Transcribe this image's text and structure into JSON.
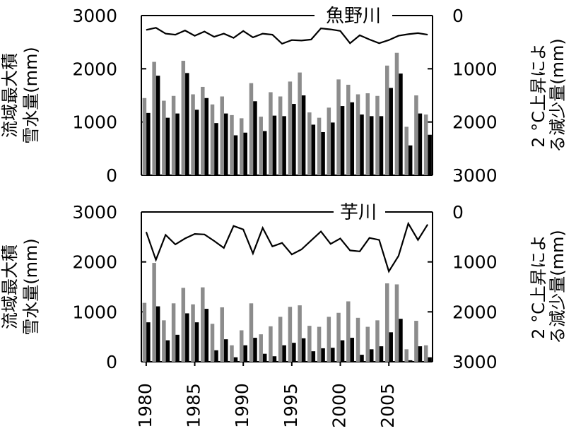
{
  "chart_data": [
    {
      "type": "bar+line",
      "title": "魚野川",
      "ylabel_left": [
        "流域最大積",
        "雪水量(mm)"
      ],
      "ylabel_right": [
        "2 °C上昇によ",
        "る減少量(mm)"
      ],
      "left_ticks": [
        "0",
        "1000",
        "2000",
        "3000"
      ],
      "right_ticks": [
        "3000",
        "2000",
        "1000",
        "0"
      ],
      "left_ylim": [
        0,
        3000
      ],
      "right_ylim_inverted": [
        0,
        3000
      ],
      "x": [
        1980,
        1981,
        1982,
        1983,
        1984,
        1985,
        1986,
        1987,
        1988,
        1989,
        1990,
        1991,
        1992,
        1993,
        1994,
        1995,
        1996,
        1997,
        1998,
        1999,
        2000,
        2001,
        2002,
        2003,
        2004,
        2005,
        2006,
        2007,
        2008,
        2009
      ],
      "series": [
        {
          "kind": "bar",
          "color": "#8c8c8c",
          "values": [
            1450,
            2130,
            1400,
            1490,
            2150,
            1520,
            1660,
            1330,
            1480,
            1130,
            1070,
            1730,
            1100,
            1560,
            1480,
            1760,
            1930,
            1180,
            1080,
            1270,
            1800,
            1700,
            1520,
            1540,
            1490,
            2060,
            2300,
            910,
            1500,
            1140
          ]
        },
        {
          "kind": "bar",
          "color": "#000000",
          "values": [
            1170,
            1870,
            1080,
            1160,
            1920,
            1230,
            1450,
            980,
            1160,
            750,
            800,
            1390,
            830,
            1120,
            1110,
            1340,
            1500,
            950,
            810,
            990,
            1300,
            1370,
            1140,
            1110,
            1110,
            1640,
            1910,
            560,
            1160,
            760
          ]
        },
        {
          "kind": "line",
          "axis": "right",
          "values": [
            270,
            230,
            340,
            360,
            280,
            380,
            300,
            400,
            340,
            420,
            290,
            410,
            340,
            360,
            530,
            460,
            470,
            450,
            240,
            260,
            290,
            520,
            370,
            450,
            520,
            460,
            380,
            350,
            330,
            360
          ]
        }
      ]
    },
    {
      "type": "bar+line",
      "title": "芋川",
      "ylabel_left": [
        "流域最大積",
        "雪水量(mm)"
      ],
      "ylabel_right": [
        "2 °C上昇によ",
        "る減少量(mm)"
      ],
      "left_ticks": [
        "0",
        "1000",
        "2000",
        "3000"
      ],
      "right_ticks": [
        "3000",
        "2000",
        "1000",
        "0"
      ],
      "left_ylim": [
        0,
        3000
      ],
      "right_ylim_inverted": [
        0,
        3000
      ],
      "x": [
        1980,
        1981,
        1982,
        1983,
        1984,
        1985,
        1986,
        1987,
        1988,
        1989,
        1990,
        1991,
        1992,
        1993,
        1994,
        1995,
        1996,
        1997,
        1998,
        1999,
        2000,
        2001,
        2002,
        2003,
        2004,
        2005,
        2006,
        2007,
        2008,
        2009
      ],
      "x_ticks": [
        "1980",
        "1985",
        "1990",
        "1995",
        "2000",
        "2005"
      ],
      "series": [
        {
          "kind": "bar",
          "color": "#8c8c8c",
          "values": [
            1180,
            1980,
            830,
            1170,
            1480,
            1150,
            1490,
            760,
            1090,
            330,
            630,
            1170,
            550,
            710,
            900,
            1100,
            1130,
            720,
            700,
            900,
            980,
            1210,
            880,
            700,
            830,
            1570,
            1550,
            250,
            820,
            330
          ]
        },
        {
          "kind": "bar",
          "color": "#000000",
          "values": [
            790,
            1110,
            430,
            540,
            970,
            790,
            1060,
            230,
            450,
            90,
            330,
            480,
            160,
            110,
            330,
            380,
            470,
            210,
            270,
            280,
            430,
            480,
            140,
            250,
            310,
            590,
            860,
            30,
            310,
            90
          ]
        },
        {
          "kind": "line",
          "axis": "right",
          "values": [
            400,
            960,
            460,
            650,
            530,
            440,
            450,
            580,
            720,
            280,
            350,
            830,
            320,
            690,
            620,
            850,
            750,
            570,
            390,
            640,
            530,
            770,
            790,
            520,
            560,
            1190,
            880,
            230,
            560,
            250
          ]
        }
      ]
    }
  ]
}
